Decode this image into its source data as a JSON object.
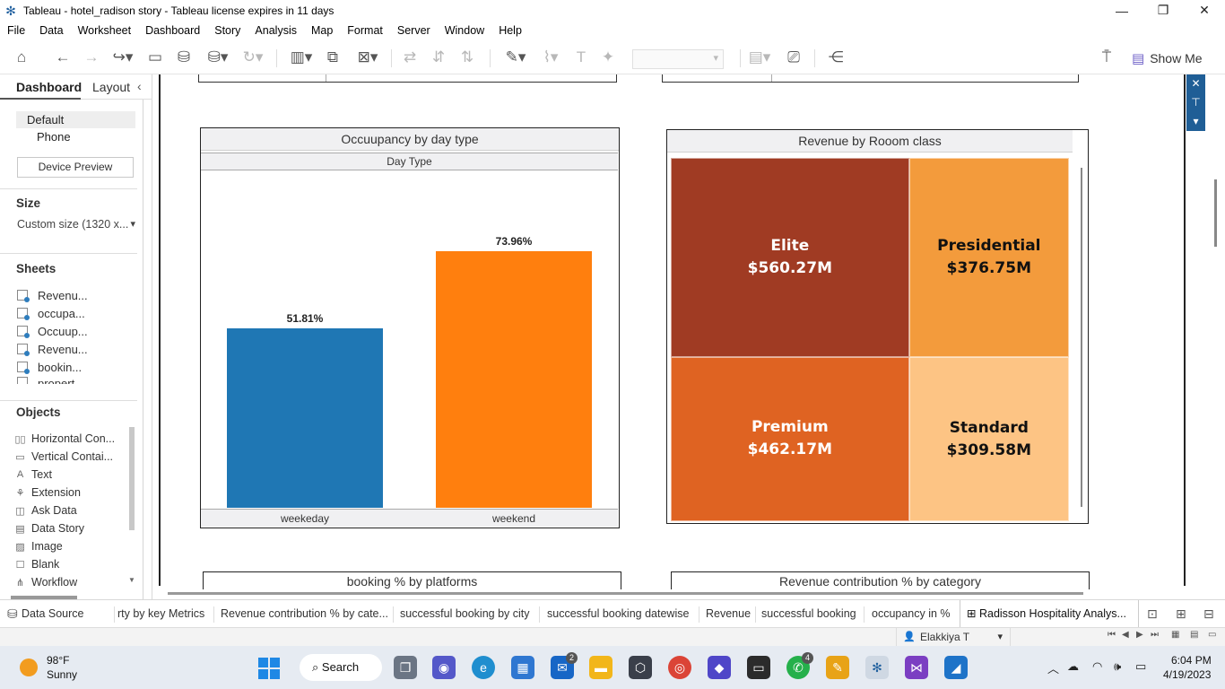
{
  "window": {
    "title": "Tableau - hotel_radison story - Tableau license expires in 11 days"
  },
  "menu": [
    "File",
    "Data",
    "Worksheet",
    "Dashboard",
    "Story",
    "Analysis",
    "Map",
    "Format",
    "Server",
    "Window",
    "Help"
  ],
  "toolbar": {
    "show_me_label": "Show Me"
  },
  "left_pane": {
    "tab_dashboard": "Dashboard",
    "tab_layout": "Layout",
    "device_default": "Default",
    "device_phone": "Phone",
    "device_preview": "Device Preview",
    "size_heading": "Size",
    "size_value": "Custom size (1320 x...",
    "sheets_heading": "Sheets",
    "sheets": [
      "Revenu...",
      "occupa...",
      "Occuup...",
      "Revenu...",
      "bookin...",
      "propert"
    ],
    "objects_heading": "Objects",
    "objects": [
      {
        "label": "Horizontal Con...",
        "icon": "horizontal-container-icon"
      },
      {
        "label": "Vertical Contai...",
        "icon": "vertical-container-icon"
      },
      {
        "label": "Text",
        "icon": "text-icon"
      },
      {
        "label": "Extension",
        "icon": "extension-icon"
      },
      {
        "label": "Ask Data",
        "icon": "ask-data-icon"
      },
      {
        "label": "Data Story",
        "icon": "data-story-icon"
      },
      {
        "label": "Image",
        "icon": "image-icon"
      },
      {
        "label": "Blank",
        "icon": "blank-icon"
      },
      {
        "label": "Workflow",
        "icon": "workflow-icon"
      }
    ]
  },
  "dashboard": {
    "occupancy_title": "Occuupancy by day type",
    "occupancy_header": "Day Type",
    "revenue_title": "Revenue by Rooom class",
    "bottom_left_title": "booking % by platforms",
    "bottom_right_title": "Revenue contribution % by category"
  },
  "chart_data": [
    {
      "type": "bar",
      "title": "Occuupancy by day type",
      "xlabel": "Day Type",
      "categories": [
        "weekeday",
        "weekend"
      ],
      "values": [
        51.81,
        73.96
      ],
      "value_labels": [
        "51.81%",
        "73.96%"
      ],
      "colors": [
        "#1f77b4",
        "#ff7f0e"
      ],
      "ylim": [
        0,
        100
      ]
    },
    {
      "type": "heatmap",
      "subtype": "treemap",
      "title": "Revenue by Rooom class",
      "categories": [
        "Elite",
        "Presidential",
        "Premium",
        "Standard"
      ],
      "values": [
        560.27,
        376.75,
        462.17,
        309.58
      ],
      "value_labels": [
        "$560.27M",
        "$376.75M",
        "$462.17M",
        "$309.58M"
      ],
      "colors": [
        "#a03b23",
        "#f39b3c",
        "#df6322",
        "#fdc484"
      ],
      "text_colors": [
        "#ffffff",
        "#111111",
        "#ffffff",
        "#111111"
      ]
    }
  ],
  "tabs": {
    "data_source": "Data Source",
    "sheets": [
      "rty by key Metrics",
      "Revenue contribution % by cate...",
      "successful booking by city",
      "successful booking datewise",
      "Revenue",
      "successful booking",
      "occupancy in %"
    ],
    "active_story": "Radisson Hospitality Analys..."
  },
  "status": {
    "user": "Elakkiya T"
  },
  "taskbar": {
    "temperature": "98°F",
    "condition": "Sunny",
    "search_label": "Search",
    "time": "6:04 PM",
    "date": "4/19/2023",
    "mail_badge": "2",
    "whatsapp_badge": "4"
  }
}
